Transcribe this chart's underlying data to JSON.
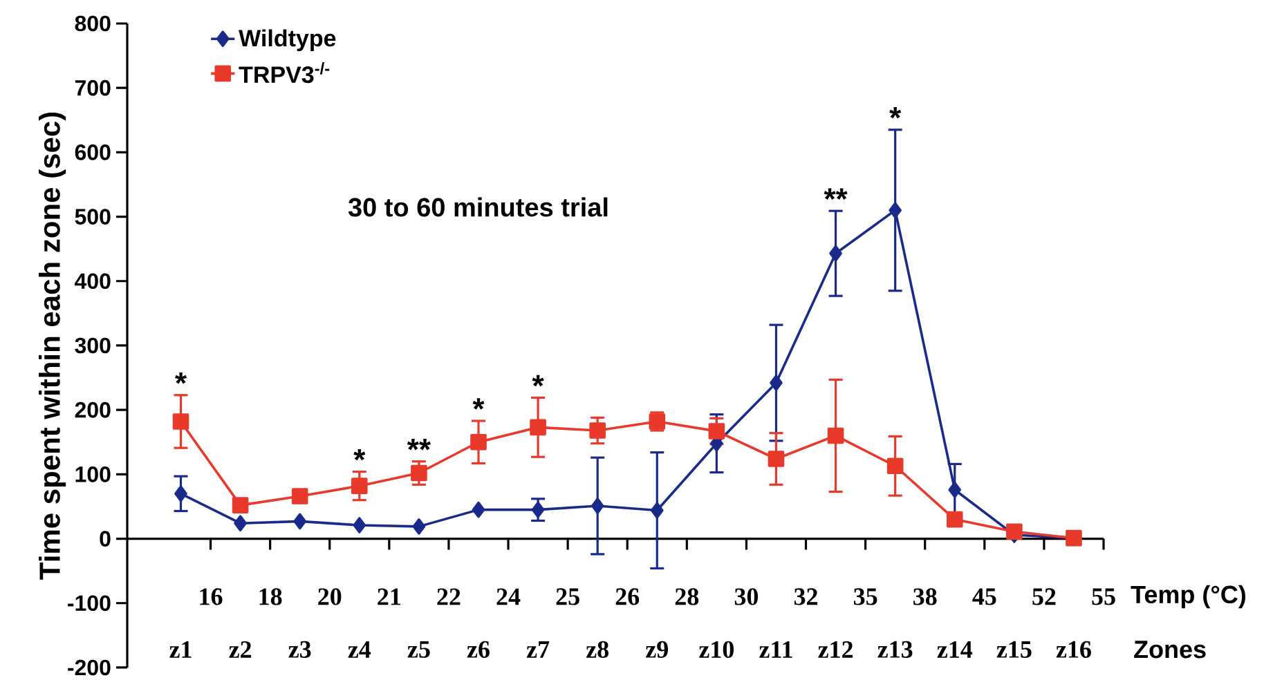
{
  "chart_data": {
    "type": "line",
    "title": "30 to 60 minutes trial",
    "ylabel": "Time spent within each zone (sec)",
    "xlabel": "Zones",
    "categories": [
      "z1",
      "z2",
      "z3",
      "z4",
      "z5",
      "z6",
      "z7",
      "z8",
      "z9",
      "z10",
      "z11",
      "z12",
      "z13",
      "z14",
      "z15",
      "z16"
    ],
    "series": [
      {
        "name": "Wildtype",
        "color": "#1a2a8a",
        "marker": "diamond",
        "values": [
          70,
          24,
          27,
          21,
          19,
          45,
          45,
          51,
          44,
          148,
          242,
          443,
          510,
          76,
          6,
          1
        ],
        "errors": [
          27,
          null,
          null,
          null,
          null,
          null,
          17,
          75,
          90,
          45,
          90,
          66,
          125,
          40,
          null,
          null
        ]
      },
      {
        "name": "TRPV3$^{-/-}$",
        "color": "#e8392a",
        "marker": "square",
        "values": [
          182,
          52,
          66,
          82,
          102,
          150,
          173,
          168,
          182,
          167,
          124,
          160,
          113,
          30,
          11,
          1
        ],
        "errors": [
          41,
          null,
          null,
          22,
          18,
          33,
          46,
          20,
          14,
          20,
          40,
          87,
          46,
          null,
          null,
          null
        ]
      }
    ],
    "ylim": [
      -200,
      800
    ],
    "yticks": [
      -200,
      -100,
      0,
      100,
      200,
      300,
      400,
      500,
      600,
      700,
      800
    ],
    "legend": "top left",
    "line_style": "solid",
    "annotations": [
      "16",
      "18",
      "20",
      "21",
      "22",
      "24",
      "25",
      "26",
      "28",
      "30",
      "32",
      "35",
      "38",
      "45",
      "52",
      "55",
      "Temp (°C)",
      {
        "text": "*",
        "x": "z1",
        "y": 182
      },
      {
        "text": "*",
        "x": "z4",
        "y": 82
      },
      {
        "text": "**",
        "x": "z5",
        "y": 102
      },
      {
        "text": "*",
        "x": "z6",
        "y": 150
      },
      {
        "text": "*",
        "x": "z7",
        "y": 173
      },
      {
        "text": "**",
        "x": "z12",
        "y": 443
      },
      {
        "text": "*",
        "x": "z13",
        "y": 635
      }
    ]
  }
}
